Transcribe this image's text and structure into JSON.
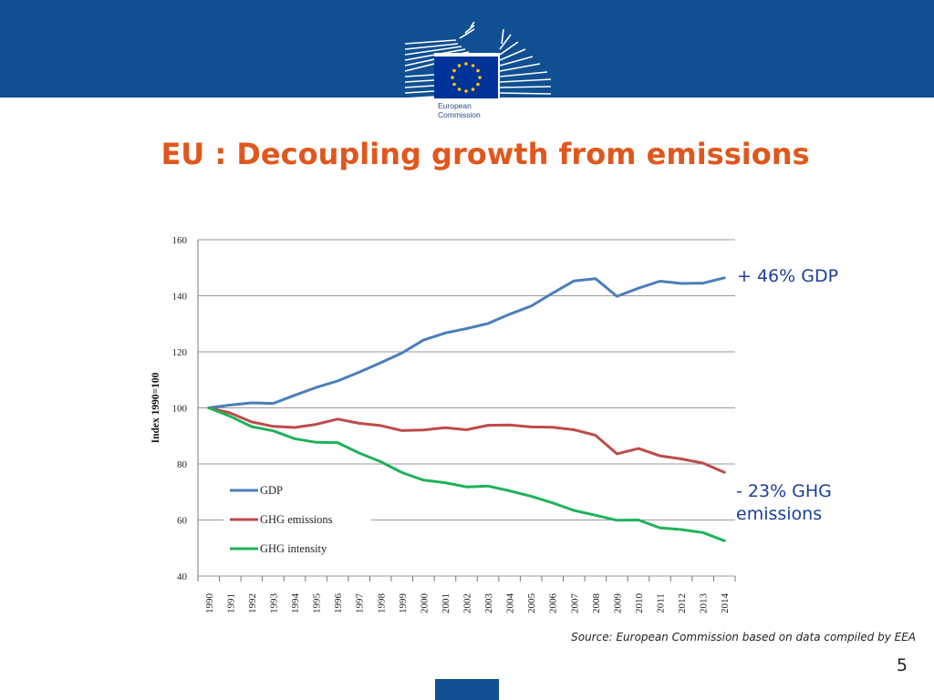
{
  "header": {
    "logo_text_line1": "European",
    "logo_text_line2": "Commission"
  },
  "slide": {
    "title": "EU : Decoupling growth from emissions",
    "annotation_gdp": "+ 46% GDP",
    "annotation_ghg": "- 23% GHG emissions",
    "source": "Source: European Commission based on data compiled by EEA",
    "page_number": "5"
  },
  "colors": {
    "header_blue": "#104f92",
    "title_orange": "#e0571d",
    "annotation_blue": "#1d3f99",
    "gdp": "#4a7ebb",
    "ghg_emissions": "#be4b48",
    "ghg_intensity": "#1fb25a",
    "grid": "#9a9a9a"
  },
  "chart_data": {
    "type": "line",
    "title": "",
    "xlabel": "",
    "ylabel": "Index 1990=100",
    "ylim": [
      40,
      160
    ],
    "yticks": [
      40,
      60,
      80,
      100,
      120,
      140,
      160
    ],
    "grid": true,
    "legend_position": "bottom-left",
    "x": [
      "1990",
      "1991",
      "1992",
      "1993",
      "1994",
      "1995",
      "1996",
      "1997",
      "1998",
      "1999",
      "2000",
      "2001",
      "2002",
      "2003",
      "2004",
      "2005",
      "2006",
      "2007",
      "2008",
      "2009",
      "2010",
      "2011",
      "2012",
      "2013",
      "2014"
    ],
    "series": [
      {
        "name": "GDP",
        "color": "#4a7ebb",
        "values": [
          100,
          101,
          101.8,
          101.6,
          104.5,
          107.3,
          109.6,
          112.7,
          116.1,
          119.6,
          124.2,
          126.7,
          128.3,
          130.1,
          133.4,
          136.3,
          140.9,
          145.3,
          146.1,
          139.8,
          142.7,
          145.2,
          144.4,
          144.5,
          146.4
        ]
      },
      {
        "name": "GHG emissions",
        "color": "#be4b48",
        "values": [
          100,
          98.2,
          95.0,
          93.4,
          93.0,
          94.1,
          96.0,
          94.5,
          93.7,
          91.9,
          92.1,
          92.9,
          92.2,
          93.8,
          93.9,
          93.2,
          93.1,
          92.2,
          90.2,
          83.6,
          85.5,
          82.9,
          81.8,
          80.3,
          77.0
        ]
      },
      {
        "name": "GHG intensity",
        "color": "#1fb25a",
        "values": [
          100,
          97.0,
          93.3,
          91.8,
          89.0,
          87.7,
          87.6,
          83.9,
          80.8,
          76.9,
          74.2,
          73.3,
          71.8,
          72.1,
          70.4,
          68.5,
          66.1,
          63.4,
          61.7,
          59.9,
          60.0,
          57.2,
          56.6,
          55.5,
          52.6
        ]
      }
    ]
  }
}
